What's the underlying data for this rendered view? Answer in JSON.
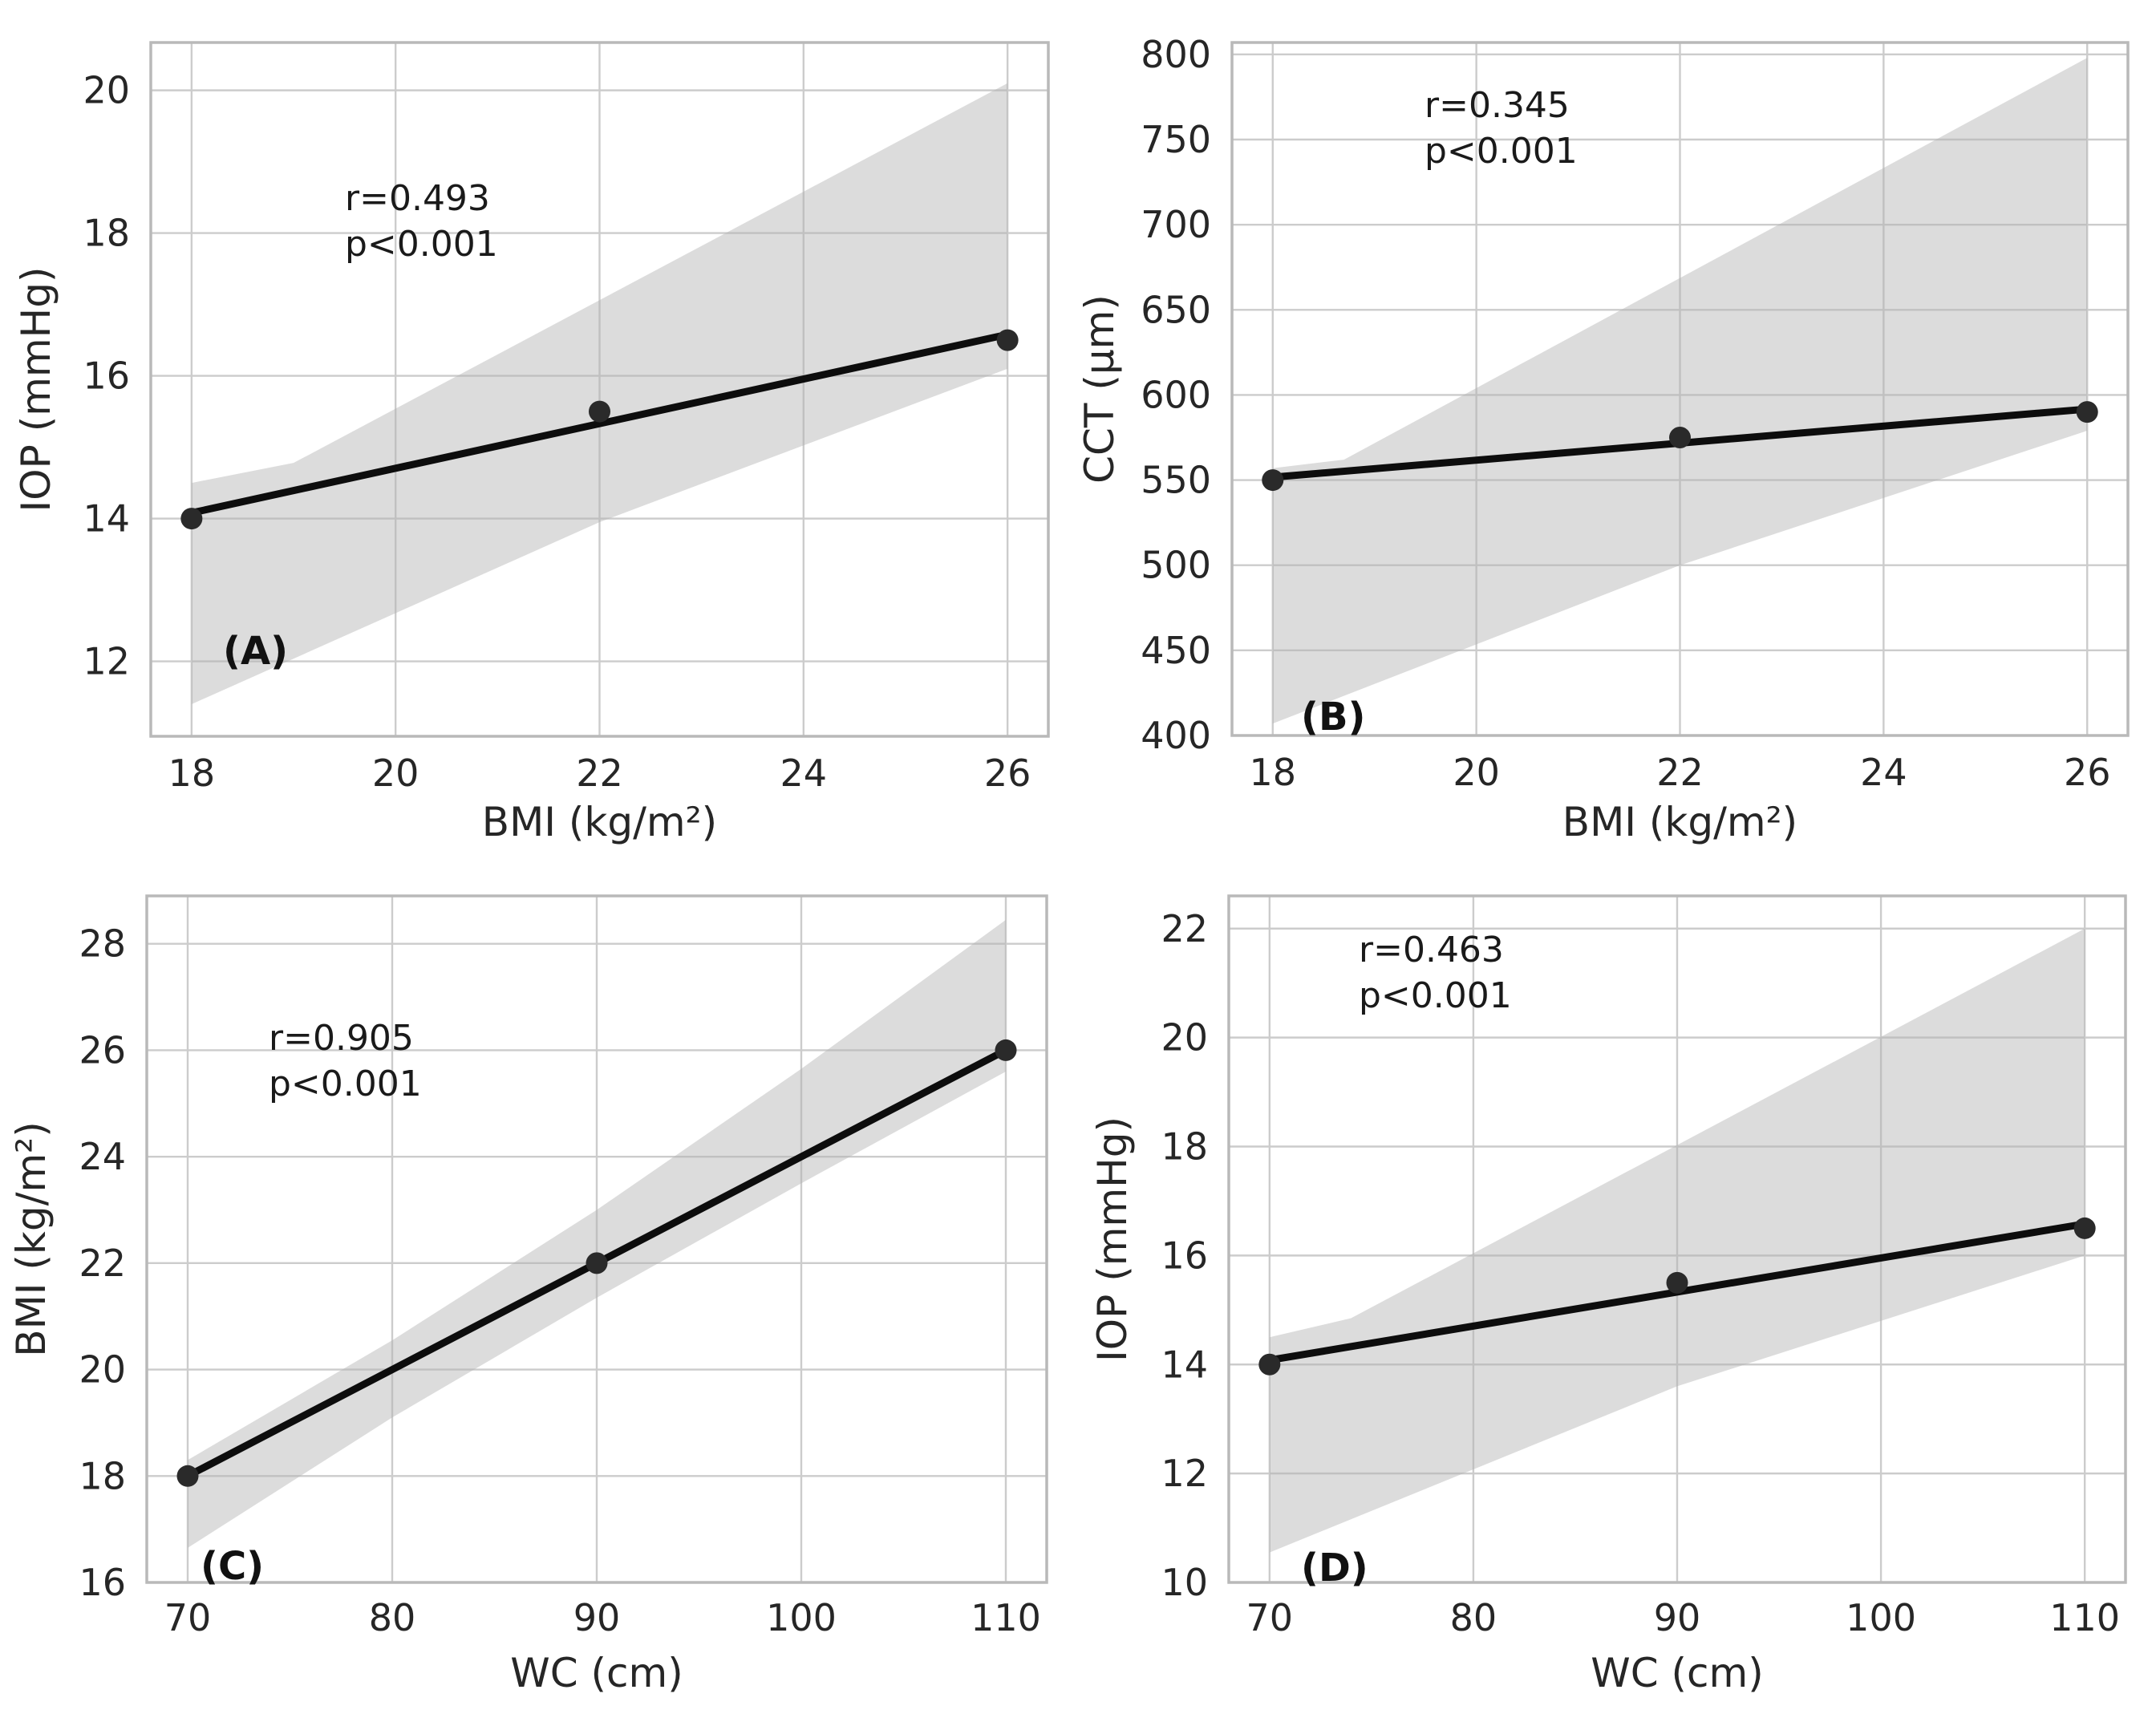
{
  "figure": {
    "background": "#ffffff",
    "rows": 2,
    "cols": 2
  },
  "colors": {
    "band": "#b1b1b1",
    "band_opacity": 0.45,
    "line": "#0d0d0d",
    "point": "#2a2a2a",
    "grid": "#cccccc",
    "border": "#b9b9b9",
    "text": "#262626"
  },
  "chart_data": [
    {
      "id": "A",
      "type": "scatter",
      "panel_label": "(A)",
      "xlabel": "BMI (kg/m²)",
      "ylabel": "IOP (mmHg)",
      "annotation": {
        "r": "r=0.493",
        "p": "p<0.001"
      },
      "x": [
        18,
        22,
        26
      ],
      "y": [
        14,
        15.5,
        16.5
      ],
      "fit_line": {
        "x1": 18,
        "y1": 14.08,
        "x2": 26,
        "y2": 16.58
      },
      "band_upper": [
        [
          18,
          14.5
        ],
        [
          19,
          14.78
        ],
        [
          26,
          20.1
        ]
      ],
      "band_lower": [
        [
          18,
          11.4
        ],
        [
          22,
          13.95
        ],
        [
          26,
          16.1
        ]
      ],
      "xlim": [
        17.6,
        26.4
      ],
      "ylim": [
        10.95,
        20.67
      ],
      "xticks": [
        18,
        20,
        22,
        24,
        26
      ],
      "yticks": [
        12,
        14,
        16,
        18,
        20
      ],
      "grid": true,
      "legend": "none"
    },
    {
      "id": "B",
      "type": "scatter",
      "panel_label": "(B)",
      "xlabel": "BMI (kg/m²)",
      "ylabel": "CCT (μm)",
      "annotation": {
        "r": "r=0.345",
        "p": "p<0.001"
      },
      "x": [
        18,
        22,
        26
      ],
      "y": [
        550,
        575,
        590
      ],
      "fit_line": {
        "x1": 18,
        "y1": 551.7,
        "x2": 26,
        "y2": 591.7
      },
      "band_upper": [
        [
          18,
          557
        ],
        [
          18.7,
          562
        ],
        [
          26,
          798
        ]
      ],
      "band_lower": [
        [
          18,
          407
        ],
        [
          22,
          500
        ],
        [
          26,
          579
        ]
      ],
      "xlim": [
        17.6,
        26.4
      ],
      "ylim": [
        400,
        807
      ],
      "xticks": [
        18,
        20,
        22,
        24,
        26
      ],
      "yticks": [
        400,
        450,
        500,
        550,
        600,
        650,
        700,
        750,
        800
      ],
      "grid": true,
      "legend": "none"
    },
    {
      "id": "C",
      "type": "scatter",
      "panel_label": "(C)",
      "xlabel": "WC (cm)",
      "ylabel": "BMI (kg/m²)",
      "annotation": {
        "r": "r=0.905",
        "p": "p<0.001"
      },
      "x": [
        70,
        90,
        110
      ],
      "y": [
        18,
        22,
        26
      ],
      "fit_line": {
        "x1": 70,
        "y1": 18,
        "x2": 110,
        "y2": 26
      },
      "band_upper": [
        [
          70,
          18.3
        ],
        [
          80,
          20.55
        ],
        [
          90,
          23.0
        ],
        [
          100,
          25.65
        ],
        [
          110,
          28.45
        ]
      ],
      "band_lower": [
        [
          70,
          16.65
        ],
        [
          80,
          19.1
        ],
        [
          90,
          21.35
        ],
        [
          100,
          23.5
        ],
        [
          110,
          25.6
        ]
      ],
      "xlim": [
        68,
        112
      ],
      "ylim": [
        16,
        28.9
      ],
      "xticks": [
        70,
        80,
        90,
        100,
        110
      ],
      "yticks": [
        16,
        18,
        20,
        22,
        24,
        26,
        28
      ],
      "grid": true,
      "legend": "none"
    },
    {
      "id": "D",
      "type": "scatter",
      "panel_label": "(D)",
      "xlabel": "WC (cm)",
      "ylabel": "IOP (mmHg)",
      "annotation": {
        "r": "r=0.463",
        "p": "p<0.001"
      },
      "x": [
        70,
        90,
        110
      ],
      "y": [
        14,
        15.5,
        16.5
      ],
      "fit_line": {
        "x1": 70,
        "y1": 14.08,
        "x2": 110,
        "y2": 16.58
      },
      "band_upper": [
        [
          70,
          14.5
        ],
        [
          74,
          14.85
        ],
        [
          110,
          22.0
        ]
      ],
      "band_lower": [
        [
          70,
          10.55
        ],
        [
          90,
          13.6
        ],
        [
          110,
          16.0
        ]
      ],
      "xlim": [
        68,
        112
      ],
      "ylim": [
        10,
        22.6
      ],
      "xticks": [
        70,
        80,
        90,
        100,
        110
      ],
      "yticks": [
        10,
        12,
        14,
        16,
        18,
        20,
        22
      ],
      "grid": true,
      "legend": "none"
    }
  ]
}
